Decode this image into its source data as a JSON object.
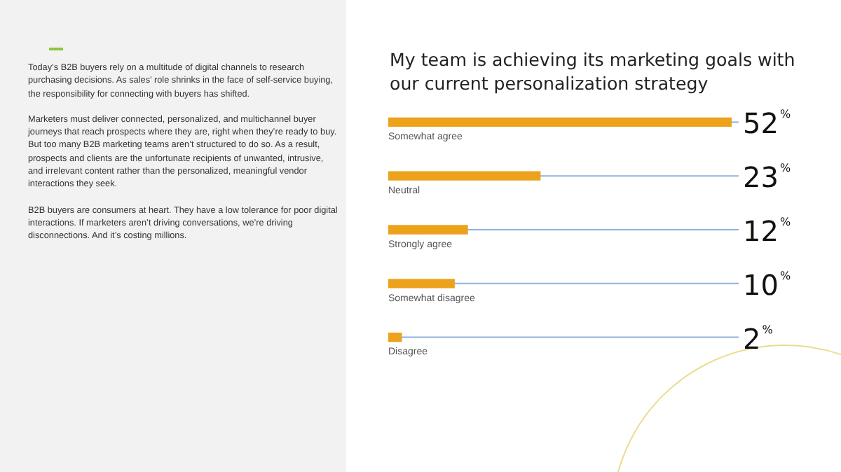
{
  "chart_data": {
    "type": "bar",
    "orientation": "horizontal",
    "title": "My team is achieving its marketing goals with our current personalization strategy",
    "categories": [
      "Somewhat agree",
      "Neutral",
      "Strongly agree",
      "Somewhat disagree",
      "Disagree"
    ],
    "values": [
      52,
      23,
      12,
      10,
      2
    ],
    "value_labels": [
      "52$^{%}$",
      "23$^{%}$",
      "12$^{%}$",
      "10$^{%}$",
      "2$^{%}$"
    ],
    "color": "#eda21c",
    "legend": false,
    "annotations": [
      "Today’s B2B buyers rely on a multitude of digital channels to research purchasing decisions. As sales’ role shrinks in the face of self-service buying, the responsibility for connecting with buyers has shifted.",
      "Marketers must deliver connected, personalized, and multichannel buyer journeys that reach prospects where they are, right when they’re ready to buy. But too many B2B marketing teams aren’t structured to do so. As a result, prospects and clients are the unfortunate recipients of unwanted, intrusive, and irrelevant content rather than the personalized, meaningful vendor interactions they seek.",
      "B2B buyers are consumers at heart. They have a low tolerance for poor digital interactions. If marketers aren’t driving conversations, we’re driving disconnections. And it’s costing millions."
    ]
  }
}
